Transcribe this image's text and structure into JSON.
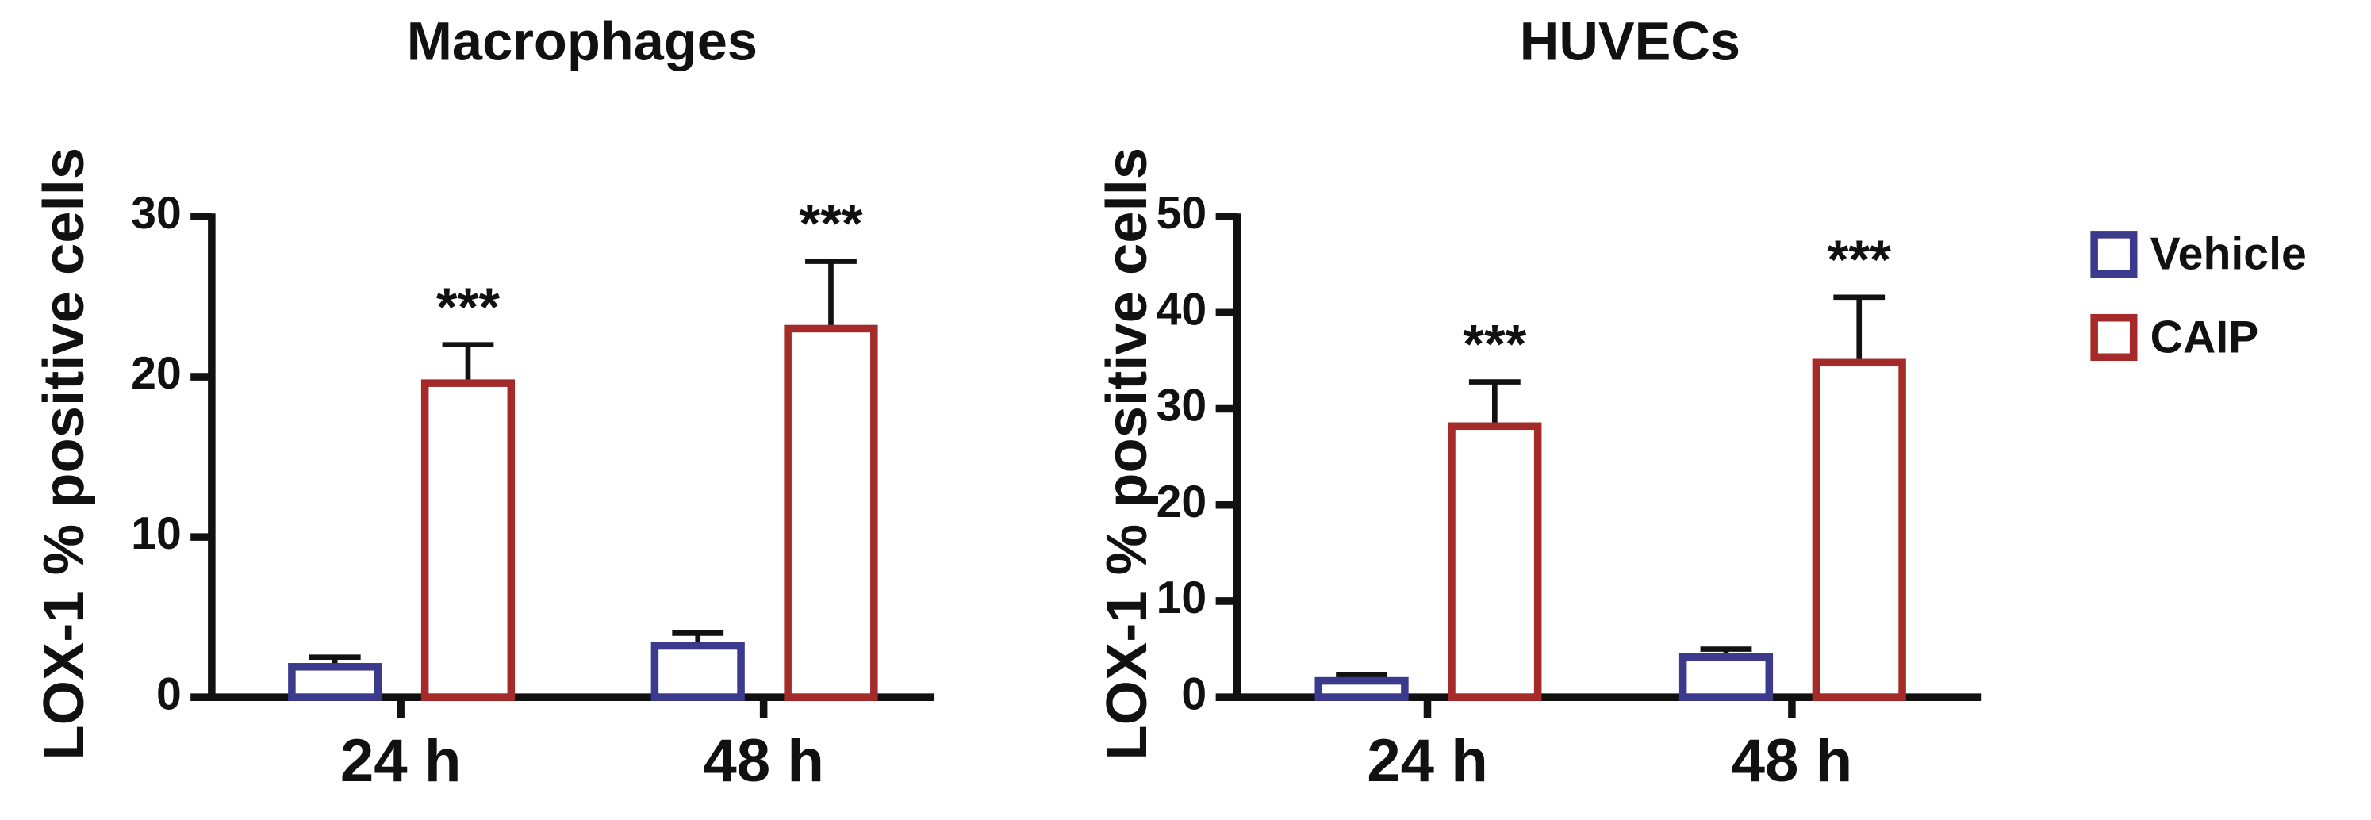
{
  "chart_data": [
    {
      "type": "bar",
      "title": "Macrophages",
      "ylabel": "LOX-1 % positive cells",
      "categories": [
        "24 h",
        "48 h"
      ],
      "series": [
        {
          "color": "#3b3a8c",
          "values": [
            1.9,
            3.2
          ],
          "errors": [
            0.6,
            0.8
          ]
        },
        {
          "color": "#a52a2a",
          "values": [
            19.6,
            23.0
          ],
          "errors": [
            2.4,
            4.2
          ],
          "annotations": [
            "***",
            "***"
          ]
        }
      ],
      "ylim": [
        0,
        30
      ],
      "yticks": [
        0,
        10,
        20,
        30
      ]
    },
    {
      "type": "bar",
      "title": "HUVECs",
      "ylabel": "LOX-1 % positive cells",
      "categories": [
        "24 h",
        "48 h"
      ],
      "series": [
        {
          "name": "Vehicle",
          "color": "#3b3a8c",
          "values": [
            1.7,
            4.2
          ],
          "errors": [
            0.6,
            0.8
          ]
        },
        {
          "name": "CAIP",
          "color": "#a52a2a",
          "values": [
            28.2,
            34.8
          ],
          "errors": [
            4.6,
            6.8
          ],
          "annotations": [
            "***",
            "***"
          ]
        }
      ],
      "ylim": [
        0,
        50
      ],
      "yticks": [
        0,
        10,
        20,
        30,
        40,
        50
      ],
      "legend": "right"
    }
  ]
}
